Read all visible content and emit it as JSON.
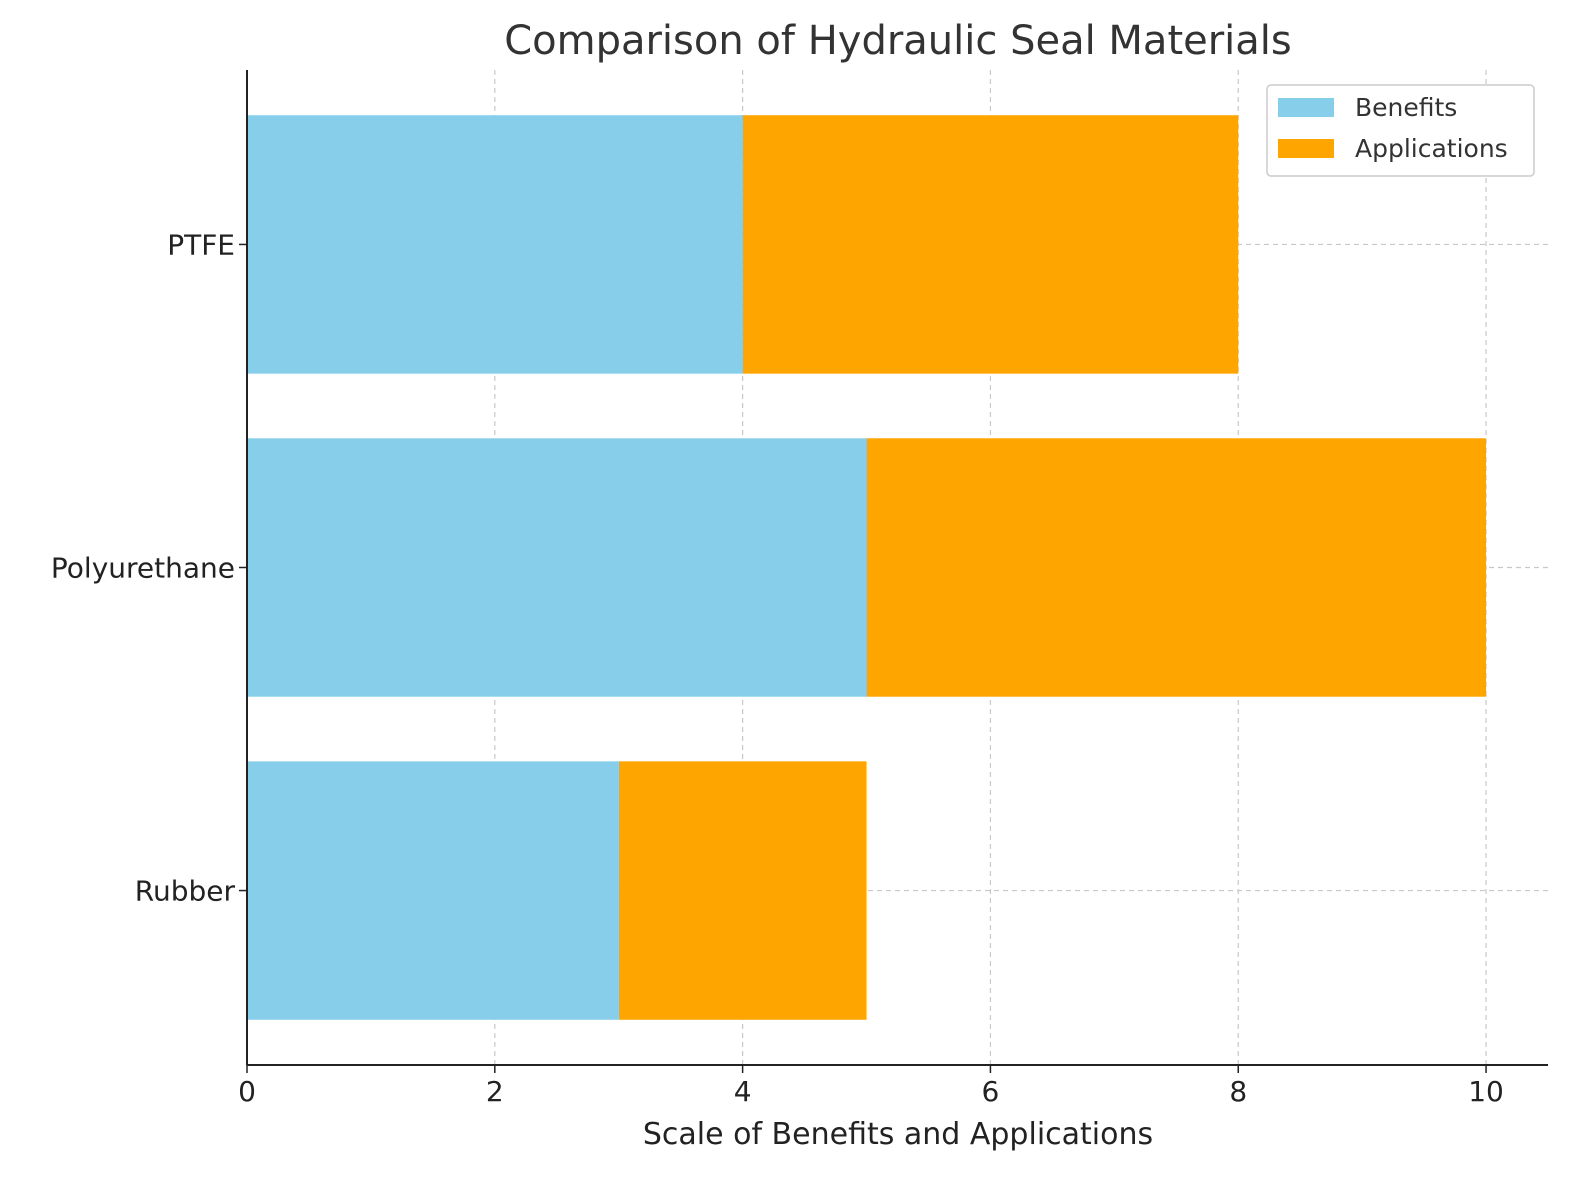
{
  "chart_data": {
    "type": "bar",
    "orientation": "horizontal",
    "stacked": true,
    "title": "Comparison of Hydraulic Seal Materials",
    "xlabel": "Scale of Benefits and Applications",
    "ylabel": "",
    "categories": [
      "Rubber",
      "Polyurethane",
      "PTFE"
    ],
    "series": [
      {
        "name": "Benefits",
        "values": [
          3,
          5,
          4
        ],
        "color": "#87CEEB"
      },
      {
        "name": "Applications",
        "values": [
          2,
          5,
          4
        ],
        "color": "#FFA500"
      }
    ],
    "xlim": [
      0,
      10.5
    ],
    "xticks": [
      0,
      2,
      4,
      6,
      8,
      10
    ],
    "grid": true,
    "legend": "top-right"
  }
}
